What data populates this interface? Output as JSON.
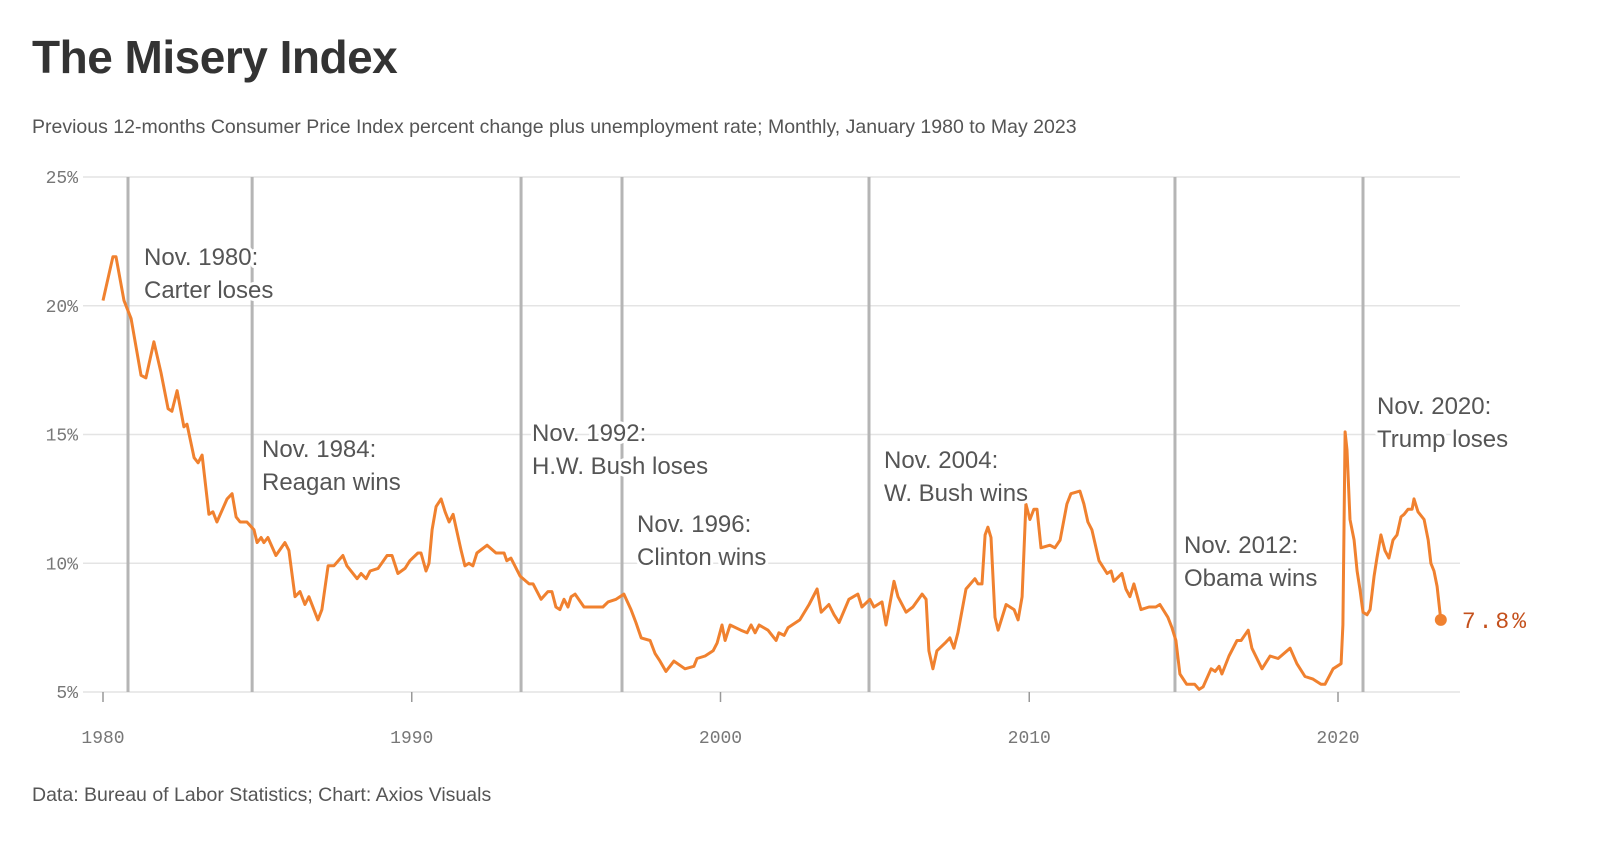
{
  "header": {
    "title": "The Misery Index",
    "subtitle": "Previous 12-months Consumer Price Index percent change plus unemployment rate; Monthly, January 1980 to May 2023"
  },
  "footer": {
    "source": "Data: Bureau of Labor Statistics; Chart: Axios Visuals"
  },
  "colors": {
    "line": "#f0812f",
    "end_label": "#c4501c",
    "event_line": "#b5b5b5",
    "grid": "#e4e4e4"
  },
  "chart_data": {
    "type": "line",
    "title": "The Misery Index",
    "xlabel": "",
    "ylabel": "",
    "xlim": [
      1980,
      2024
    ],
    "ylim": [
      5,
      25
    ],
    "grid": "horizontal",
    "x_ticks": [
      {
        "value": 1980,
        "label": "1980"
      },
      {
        "value": 1990,
        "label": "1990"
      },
      {
        "value": 2000,
        "label": "2000"
      },
      {
        "value": 2010,
        "label": "2010"
      },
      {
        "value": 2020,
        "label": "2020"
      }
    ],
    "y_ticks": [
      {
        "value": 25,
        "label": "25%"
      },
      {
        "value": 20,
        "label": "20%"
      },
      {
        "value": 15,
        "label": "15%"
      },
      {
        "value": 10,
        "label": "10%"
      },
      {
        "value": 5,
        "label": "5%"
      }
    ],
    "end_label": "7.8%",
    "events": [
      {
        "x": 1980.81,
        "lines": [
          "Nov. 1980:",
          "Carter loses"
        ]
      },
      {
        "x": 1984.83,
        "lines": [
          "Nov. 1984:",
          "Reagan wins"
        ]
      },
      {
        "x": 1993.54,
        "lines": [
          "Nov. 1992:",
          "H.W. Bush loses"
        ]
      },
      {
        "x": 1996.81,
        "lines": [
          "Nov. 1996:",
          "Clinton wins"
        ]
      },
      {
        "x": 2004.81,
        "lines": [
          "Nov. 2004:",
          "W. Bush wins"
        ]
      },
      {
        "x": 2014.72,
        "lines": [
          "Nov. 2012:",
          "Obama wins"
        ]
      },
      {
        "x": 2020.81,
        "lines": [
          "Nov. 2020:",
          "Trump loses"
        ]
      }
    ],
    "series": [
      {
        "points": [
          [
            1980.0,
            20.2
          ],
          [
            1980.32,
            21.9
          ],
          [
            1980.42,
            21.9
          ],
          [
            1980.68,
            20.2
          ],
          [
            1980.91,
            19.5
          ],
          [
            1981.23,
            17.3
          ],
          [
            1981.39,
            17.2
          ],
          [
            1981.65,
            18.6
          ],
          [
            1981.88,
            17.4
          ],
          [
            1982.11,
            16.0
          ],
          [
            1982.23,
            15.9
          ],
          [
            1982.4,
            16.7
          ],
          [
            1982.62,
            15.3
          ],
          [
            1982.72,
            15.4
          ],
          [
            1982.95,
            14.1
          ],
          [
            1983.08,
            13.9
          ],
          [
            1983.21,
            14.2
          ],
          [
            1983.43,
            11.9
          ],
          [
            1983.56,
            12.0
          ],
          [
            1983.69,
            11.6
          ],
          [
            1984.02,
            12.5
          ],
          [
            1984.18,
            12.7
          ],
          [
            1984.31,
            11.8
          ],
          [
            1984.44,
            11.6
          ],
          [
            1984.66,
            11.6
          ],
          [
            1984.89,
            11.3
          ],
          [
            1984.99,
            10.8
          ],
          [
            1985.12,
            11.0
          ],
          [
            1985.21,
            10.8
          ],
          [
            1985.34,
            11.0
          ],
          [
            1985.6,
            10.3
          ],
          [
            1985.89,
            10.8
          ],
          [
            1986.02,
            10.5
          ],
          [
            1986.22,
            8.7
          ],
          [
            1986.38,
            8.9
          ],
          [
            1986.54,
            8.4
          ],
          [
            1986.67,
            8.7
          ],
          [
            1986.96,
            7.8
          ],
          [
            1987.09,
            8.2
          ],
          [
            1987.29,
            9.9
          ],
          [
            1987.48,
            9.9
          ],
          [
            1987.77,
            10.3
          ],
          [
            1987.9,
            9.9
          ],
          [
            1988.23,
            9.4
          ],
          [
            1988.36,
            9.6
          ],
          [
            1988.52,
            9.4
          ],
          [
            1988.65,
            9.7
          ],
          [
            1988.91,
            9.8
          ],
          [
            1989.2,
            10.3
          ],
          [
            1989.36,
            10.3
          ],
          [
            1989.55,
            9.6
          ],
          [
            1989.78,
            9.8
          ],
          [
            1989.94,
            10.1
          ],
          [
            1990.2,
            10.4
          ],
          [
            1990.3,
            10.4
          ],
          [
            1990.46,
            9.7
          ],
          [
            1990.56,
            10.0
          ],
          [
            1990.66,
            11.3
          ],
          [
            1990.79,
            12.2
          ],
          [
            1990.95,
            12.5
          ],
          [
            1991.08,
            12.0
          ],
          [
            1991.21,
            11.6
          ],
          [
            1991.34,
            11.9
          ],
          [
            1991.6,
            10.5
          ],
          [
            1991.72,
            9.9
          ],
          [
            1991.85,
            10.0
          ],
          [
            1991.98,
            9.9
          ],
          [
            1992.11,
            10.4
          ],
          [
            1992.44,
            10.7
          ],
          [
            1992.73,
            10.4
          ],
          [
            1992.99,
            10.4
          ],
          [
            1993.08,
            10.1
          ],
          [
            1993.21,
            10.2
          ],
          [
            1993.51,
            9.5
          ],
          [
            1993.8,
            9.2
          ],
          [
            1993.93,
            9.2
          ],
          [
            1994.19,
            8.6
          ],
          [
            1994.41,
            8.9
          ],
          [
            1994.54,
            8.9
          ],
          [
            1994.67,
            8.3
          ],
          [
            1994.8,
            8.2
          ],
          [
            1994.93,
            8.6
          ],
          [
            1995.06,
            8.3
          ],
          [
            1995.16,
            8.7
          ],
          [
            1995.29,
            8.8
          ],
          [
            1995.58,
            8.3
          ],
          [
            1995.9,
            8.3
          ],
          [
            1996.19,
            8.3
          ],
          [
            1996.36,
            8.5
          ],
          [
            1996.62,
            8.6
          ],
          [
            1996.87,
            8.8
          ],
          [
            1997.1,
            8.2
          ],
          [
            1997.26,
            7.7
          ],
          [
            1997.43,
            7.1
          ],
          [
            1997.72,
            7.0
          ],
          [
            1997.88,
            6.5
          ],
          [
            1998.04,
            6.2
          ],
          [
            1998.23,
            5.8
          ],
          [
            1998.36,
            6.0
          ],
          [
            1998.49,
            6.2
          ],
          [
            1998.85,
            5.9
          ],
          [
            1999.14,
            6.0
          ],
          [
            1999.24,
            6.3
          ],
          [
            1999.5,
            6.4
          ],
          [
            1999.76,
            6.6
          ],
          [
            1999.89,
            6.9
          ],
          [
            2000.05,
            7.6
          ],
          [
            2000.15,
            7.0
          ],
          [
            2000.31,
            7.6
          ],
          [
            2000.66,
            7.4
          ],
          [
            2000.86,
            7.3
          ],
          [
            2000.99,
            7.6
          ],
          [
            2001.12,
            7.3
          ],
          [
            2001.25,
            7.6
          ],
          [
            2001.54,
            7.4
          ],
          [
            2001.8,
            7.0
          ],
          [
            2001.89,
            7.3
          ],
          [
            2002.06,
            7.2
          ],
          [
            2002.19,
            7.5
          ],
          [
            2002.57,
            7.8
          ],
          [
            2002.87,
            8.4
          ],
          [
            2003.13,
            9.0
          ],
          [
            2003.26,
            8.1
          ],
          [
            2003.51,
            8.4
          ],
          [
            2003.68,
            8.0
          ],
          [
            2003.84,
            7.7
          ],
          [
            2004.16,
            8.6
          ],
          [
            2004.45,
            8.8
          ],
          [
            2004.58,
            8.3
          ],
          [
            2004.84,
            8.6
          ],
          [
            2004.97,
            8.3
          ],
          [
            2005.23,
            8.5
          ],
          [
            2005.36,
            7.6
          ],
          [
            2005.62,
            9.3
          ],
          [
            2005.75,
            8.7
          ],
          [
            2006.01,
            8.1
          ],
          [
            2006.23,
            8.3
          ],
          [
            2006.53,
            8.8
          ],
          [
            2006.66,
            8.6
          ],
          [
            2006.75,
            6.6
          ],
          [
            2006.88,
            5.9
          ],
          [
            2007.01,
            6.6
          ],
          [
            2007.27,
            6.9
          ],
          [
            2007.43,
            7.1
          ],
          [
            2007.56,
            6.7
          ],
          [
            2007.69,
            7.3
          ],
          [
            2007.95,
            9.0
          ],
          [
            2008.24,
            9.4
          ],
          [
            2008.34,
            9.2
          ],
          [
            2008.47,
            9.2
          ],
          [
            2008.57,
            11.1
          ],
          [
            2008.66,
            11.4
          ],
          [
            2008.76,
            11.0
          ],
          [
            2008.89,
            7.9
          ],
          [
            2008.99,
            7.4
          ],
          [
            2009.25,
            8.4
          ],
          [
            2009.51,
            8.2
          ],
          [
            2009.64,
            7.8
          ],
          [
            2009.77,
            8.7
          ],
          [
            2009.89,
            12.3
          ],
          [
            2010.02,
            11.7
          ],
          [
            2010.15,
            12.1
          ],
          [
            2010.25,
            12.1
          ],
          [
            2010.38,
            10.6
          ],
          [
            2010.67,
            10.7
          ],
          [
            2010.83,
            10.6
          ],
          [
            2011.0,
            10.9
          ],
          [
            2011.22,
            12.3
          ],
          [
            2011.35,
            12.7
          ],
          [
            2011.64,
            12.8
          ],
          [
            2011.77,
            12.3
          ],
          [
            2011.9,
            11.6
          ],
          [
            2012.03,
            11.3
          ],
          [
            2012.26,
            10.1
          ],
          [
            2012.52,
            9.6
          ],
          [
            2012.65,
            9.7
          ],
          [
            2012.74,
            9.3
          ],
          [
            2013.0,
            9.6
          ],
          [
            2013.13,
            9.0
          ],
          [
            2013.26,
            8.7
          ],
          [
            2013.39,
            9.2
          ],
          [
            2013.62,
            8.2
          ],
          [
            2013.88,
            8.3
          ],
          [
            2014.1,
            8.3
          ],
          [
            2014.23,
            8.4
          ],
          [
            2014.49,
            7.9
          ],
          [
            2014.62,
            7.5
          ],
          [
            2014.75,
            7.0
          ],
          [
            2014.88,
            5.7
          ],
          [
            2015.1,
            5.3
          ],
          [
            2015.36,
            5.3
          ],
          [
            2015.5,
            5.1
          ],
          [
            2015.63,
            5.2
          ],
          [
            2015.89,
            5.9
          ],
          [
            2016.02,
            5.8
          ],
          [
            2016.15,
            6.0
          ],
          [
            2016.24,
            5.7
          ],
          [
            2016.47,
            6.4
          ],
          [
            2016.73,
            7.0
          ],
          [
            2016.86,
            7.0
          ],
          [
            2017.09,
            7.4
          ],
          [
            2017.21,
            6.7
          ],
          [
            2017.54,
            5.9
          ],
          [
            2017.8,
            6.4
          ],
          [
            2018.06,
            6.3
          ],
          [
            2018.45,
            6.7
          ],
          [
            2018.67,
            6.1
          ],
          [
            2018.93,
            5.6
          ],
          [
            2019.19,
            5.5
          ],
          [
            2019.45,
            5.3
          ],
          [
            2019.58,
            5.3
          ],
          [
            2019.84,
            5.9
          ],
          [
            2020.1,
            6.1
          ],
          [
            2020.16,
            7.6
          ],
          [
            2020.23,
            15.1
          ],
          [
            2020.29,
            14.4
          ],
          [
            2020.39,
            11.7
          ],
          [
            2020.52,
            10.9
          ],
          [
            2020.62,
            9.7
          ],
          [
            2020.71,
            9.0
          ],
          [
            2020.81,
            8.1
          ],
          [
            2020.94,
            8.0
          ],
          [
            2021.04,
            8.2
          ],
          [
            2021.17,
            9.5
          ],
          [
            2021.26,
            10.2
          ],
          [
            2021.39,
            11.1
          ],
          [
            2021.52,
            10.5
          ],
          [
            2021.65,
            10.2
          ],
          [
            2021.78,
            10.9
          ],
          [
            2021.91,
            11.1
          ],
          [
            2022.04,
            11.8
          ],
          [
            2022.14,
            11.9
          ],
          [
            2022.27,
            12.1
          ],
          [
            2022.4,
            12.1
          ],
          [
            2022.46,
            12.5
          ],
          [
            2022.59,
            12.0
          ],
          [
            2022.79,
            11.7
          ],
          [
            2022.92,
            10.9
          ],
          [
            2023.01,
            10.0
          ],
          [
            2023.11,
            9.7
          ],
          [
            2023.21,
            9.1
          ],
          [
            2023.33,
            7.8
          ]
        ]
      }
    ]
  }
}
